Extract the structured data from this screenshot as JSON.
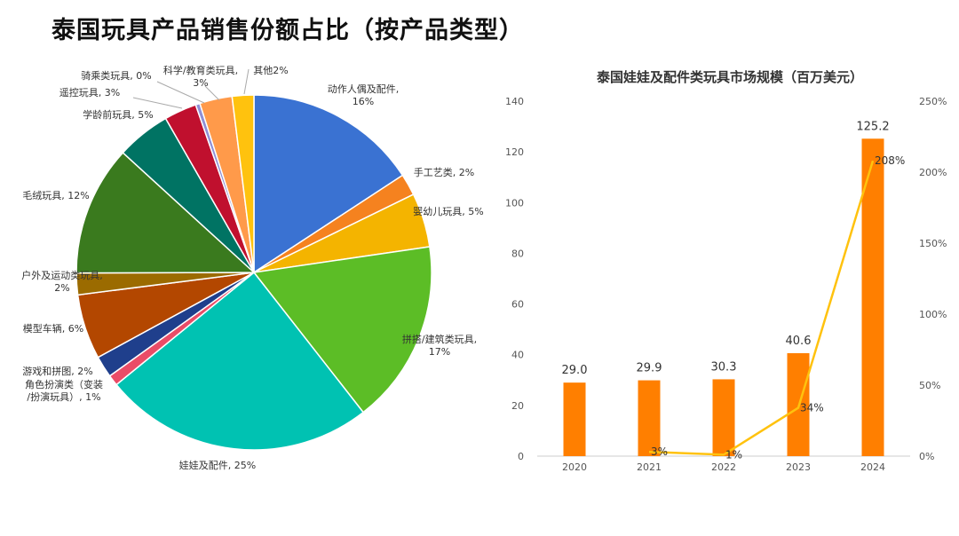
{
  "page_title": "泰国玩具产品销售份额占比（按产品类型）",
  "chart_data": [
    {
      "type": "pie",
      "title": "",
      "slices": [
        {
          "name": "动作人偶及配件",
          "value": 16,
          "label": [
            "动作人偶及配件,",
            "16%"
          ],
          "color": "#3a72d2"
        },
        {
          "name": "手工艺类",
          "value": 2,
          "label": [
            "手工艺类, 2%"
          ],
          "color": "#f5821f"
        },
        {
          "name": "婴幼儿玩具",
          "value": 5,
          "label": [
            "婴幼儿玩具, 5%"
          ],
          "color": "#f4b400"
        },
        {
          "name": "拼搭/建筑类玩具",
          "value": 17,
          "label": [
            "拼搭/建筑类玩具,",
            "17%"
          ],
          "color": "#5cbd26"
        },
        {
          "name": "娃娃及配件",
          "value": 25,
          "label": [
            "娃娃及配件, 25%"
          ],
          "color": "#00c2b2"
        },
        {
          "name": "角色扮演类（变装/扮演玩具）",
          "value": 1,
          "label": [
            "角色扮演类（变装",
            "/扮演玩具）, 1%"
          ],
          "color": "#ea4c67"
        },
        {
          "name": "游戏和拼图",
          "value": 2,
          "label": [
            "游戏和拼图, 2%"
          ],
          "color": "#1f3f8c"
        },
        {
          "name": "模型车辆",
          "value": 6,
          "label": [
            "模型车辆, 6%"
          ],
          "color": "#b34700"
        },
        {
          "name": "户外及运动类玩具",
          "value": 2,
          "label": [
            "户外及运动类玩具,",
            "2%"
          ],
          "color": "#9b6b00"
        },
        {
          "name": "毛绒玩具",
          "value": 12,
          "label": [
            "毛绒玩具, 12%"
          ],
          "color": "#3a7a1e"
        },
        {
          "name": "学龄前玩具",
          "value": 5,
          "label": [
            "学龄前玩具, 5%"
          ],
          "color": "#007363"
        },
        {
          "name": "遥控玩具",
          "value": 3,
          "label": [
            "遥控玩具, 3%"
          ],
          "color": "#c0102e"
        },
        {
          "name": "骑乘类玩具",
          "value": 0.4,
          "label": [
            "骑乘类玩具, 0%"
          ],
          "color": "#8f8fd6"
        },
        {
          "name": "科学/教育类玩具",
          "value": 3,
          "label": [
            "科学/教育类玩具,",
            "3%"
          ],
          "color": "#ff9a4a"
        },
        {
          "name": "其他",
          "value": 2,
          "label": [
            "其他2%"
          ],
          "color": "#ffc20e"
        }
      ]
    },
    {
      "type": "bar",
      "title": "泰国娃娃及配件类玩具市场规模（百万美元）",
      "categories": [
        "2020",
        "2021",
        "2022",
        "2023",
        "2024"
      ],
      "series": [
        {
          "values": [
            29.0,
            29.9,
            30.3,
            40.6,
            125.2
          ],
          "value_labels": [
            "29.0",
            "29.9",
            "30.3",
            "40.6",
            "125.2"
          ],
          "color": "#ff7f00",
          "axis": "left"
        },
        {
          "values": [
            null,
            3,
            1,
            34,
            208
          ],
          "value_labels": [
            "",
            "3%",
            "1%",
            "34%",
            "208%"
          ],
          "color": "#ffc20e",
          "axis": "right",
          "kind": "line"
        }
      ],
      "y_left": {
        "min": 0,
        "max": 140,
        "ticks": [
          "0",
          "20",
          "40",
          "60",
          "80",
          "100",
          "120",
          "140"
        ]
      },
      "y_right": {
        "min": 0,
        "max": 250,
        "ticks": [
          "0%",
          "50%",
          "100%",
          "150%",
          "200%",
          "250%"
        ]
      }
    }
  ]
}
